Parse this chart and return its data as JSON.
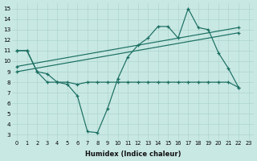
{
  "xlabel": "Humidex (Indice chaleur)",
  "bg_color": "#c8e8e4",
  "grid_color": "#aed4ce",
  "line_color": "#1a6e60",
  "line1_x": [
    0,
    1,
    2,
    3,
    4,
    5,
    6,
    7,
    8,
    9,
    10,
    11,
    12,
    13,
    14,
    15,
    16,
    17,
    18,
    19,
    20,
    21,
    22
  ],
  "line1_y": [
    11.0,
    11.0,
    9.0,
    8.0,
    8.0,
    7.8,
    6.7,
    3.3,
    3.2,
    5.5,
    8.3,
    10.4,
    11.5,
    12.2,
    13.3,
    13.3,
    12.2,
    15.0,
    13.2,
    13.0,
    10.8,
    9.3,
    7.5
  ],
  "line2_x": [
    0,
    1,
    2,
    3,
    4,
    5,
    6,
    7,
    8,
    9,
    10,
    11,
    12,
    13,
    14,
    15,
    16,
    17,
    18,
    19,
    20,
    21,
    22
  ],
  "line2_y": [
    11.0,
    11.0,
    9.0,
    8.8,
    8.0,
    8.0,
    7.8,
    8.0,
    8.0,
    8.0,
    8.0,
    8.0,
    8.0,
    8.0,
    8.0,
    8.0,
    8.0,
    8.0,
    8.0,
    8.0,
    8.0,
    8.0,
    7.5
  ],
  "line3_x": [
    0,
    22
  ],
  "line3_y": [
    9.5,
    13.2
  ],
  "line4_x": [
    0,
    22
  ],
  "line4_y": [
    9.0,
    12.7
  ],
  "ylim_min": 3,
  "ylim_max": 15,
  "yticks": [
    3,
    4,
    5,
    6,
    7,
    8,
    9,
    10,
    11,
    12,
    13,
    14,
    15
  ],
  "xticks": [
    0,
    1,
    2,
    3,
    4,
    5,
    6,
    7,
    8,
    9,
    10,
    11,
    12,
    13,
    14,
    15,
    16,
    17,
    18,
    19,
    20,
    21,
    22,
    23
  ]
}
